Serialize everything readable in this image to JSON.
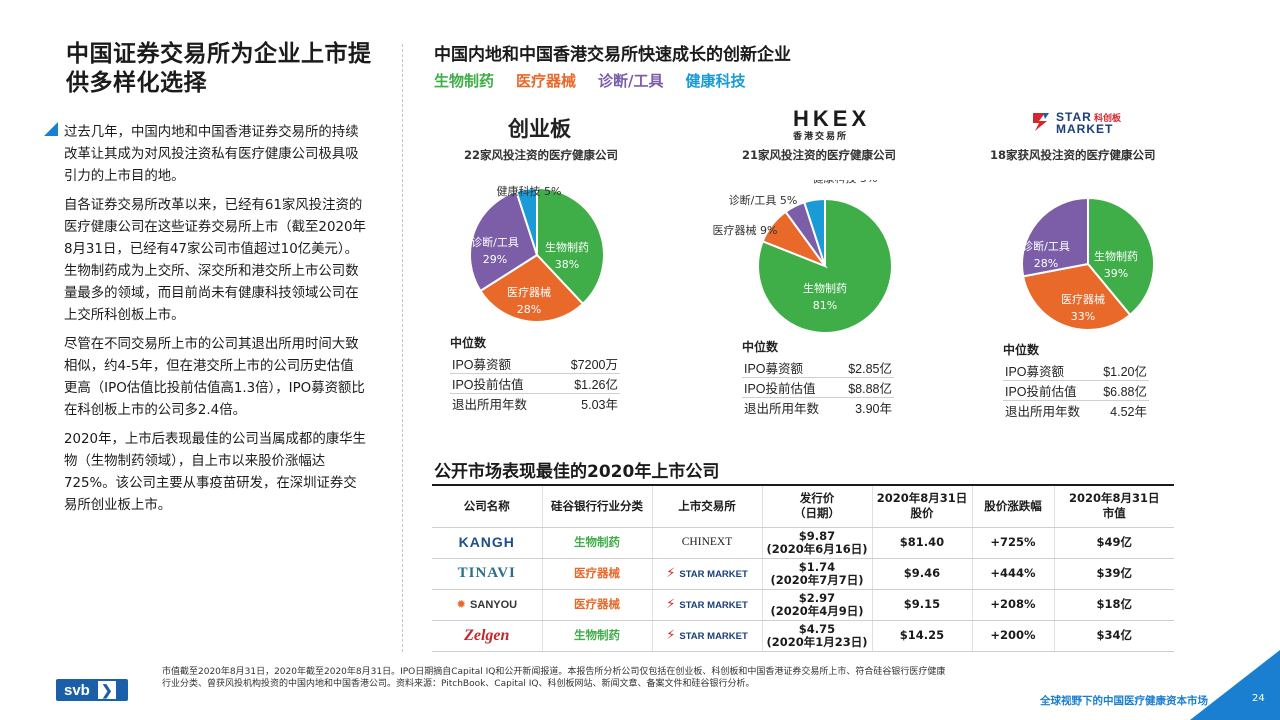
{
  "left": {
    "title": "中国证券交易所为企业上市提供多样化选择",
    "paragraphs": [
      "过去几年，中国内地和中国香港证券交易所的持续改革让其成为对风投注资私有医疗健康公司极具吸引力的上市目的地。",
      "自各证券交易所改革以来，已经有61家风投注资的医疗健康公司在这些证券交易所上市（截至2020年8月31日，已经有47家公司市值超过10亿美元）。生物制药成为上交所、深交所和港交所上市公司数量最多的领域，而目前尚未有健康科技领域公司在上交所科创板上市。",
      "尽管在不同交易所上市的公司其退出所用时间大致相似，约4-5年，但在港交所上市的公司历史估值更高（IPO估值比投前估值高1.3倍），IPO募资额比在科创板上市的公司多2.4倍。",
      "2020年，上市后表现最佳的公司当属成都的康华生物（生物制药领域），自上市以来股价涨幅达725%。该公司主要从事疫苗研发，在深圳证券交易所创业板上市。"
    ]
  },
  "main_title": "中国内地和中国香港交易所快速成长的创新企业",
  "legend": [
    {
      "label": "生物制药",
      "color": "#3fae49"
    },
    {
      "label": "医疗器械",
      "color": "#e8692a"
    },
    {
      "label": "诊断/工具",
      "color": "#7b5ea7"
    },
    {
      "label": "健康科技",
      "color": "#1a9bd8"
    }
  ],
  "exchanges": [
    {
      "name": "创业板",
      "subtitle": "22家风投注资的医疗健康公司",
      "median_header": "中位数",
      "medians": [
        [
          "IPO募资额",
          "$7200万"
        ],
        [
          "IPO投前估值",
          "$1.26亿"
        ],
        [
          "退出所用年数",
          "5.03年"
        ]
      ]
    },
    {
      "name": "HKEX",
      "name_sub": "香港交易所",
      "subtitle": "21家风投注资的医疗健康公司",
      "median_header": "中位数",
      "medians": [
        [
          "IPO募资额",
          "$2.85亿"
        ],
        [
          "IPO投前估值",
          "$8.88亿"
        ],
        [
          "退出所用年数",
          "3.90年"
        ]
      ]
    },
    {
      "name": "STAR MARKET",
      "name_cn": "科创板",
      "subtitle": "18家获风投注资的医疗健康公司",
      "median_header": "中位数",
      "medians": [
        [
          "IPO募资额",
          "$1.20亿"
        ],
        [
          "IPO投前估值",
          "$6.88亿"
        ],
        [
          "退出所用年数",
          "4.52年"
        ]
      ]
    }
  ],
  "chart_data": [
    {
      "type": "pie",
      "title": "创业板",
      "labels": [
        "生物制药",
        "医疗器械",
        "诊断/工具",
        "健康科技"
      ],
      "values": [
        38,
        28,
        29,
        5
      ],
      "colors": [
        "#3fae49",
        "#e8692a",
        "#7b5ea7",
        "#1a9bd8"
      ]
    },
    {
      "type": "pie",
      "title": "HKEX",
      "labels": [
        "生物制药",
        "医疗器械",
        "诊断/工具",
        "健康科技"
      ],
      "values": [
        81,
        9,
        5,
        5
      ],
      "colors": [
        "#3fae49",
        "#e8692a",
        "#7b5ea7",
        "#1a9bd8"
      ]
    },
    {
      "type": "pie",
      "title": "STAR MARKET",
      "labels": [
        "生物制药",
        "医疗器械",
        "诊断/工具"
      ],
      "values": [
        39,
        33,
        28
      ],
      "colors": [
        "#3fae49",
        "#e8692a",
        "#7b5ea7"
      ]
    }
  ],
  "table": {
    "title": "公开市场表现最佳的2020年上市公司",
    "headers": [
      "公司名称",
      "硅谷银行行业分类",
      "上市交易所",
      "发行价\n（日期）",
      "2020年8月31日\n股价",
      "股价涨跌幅",
      "2020年8月31日\n市值"
    ],
    "rows": [
      {
        "company": "KANGH",
        "category": "生物制药",
        "exchange": "CHINEXT",
        "price": "$9.87",
        "date": "(2020年6月16日)",
        "stock": "$81.40",
        "change": "+725%",
        "cap": "$49亿"
      },
      {
        "company": "TINAVI",
        "category": "医疗器械",
        "exchange": "STAR MARKET",
        "price": "$1.74",
        "date": "(2020年7月7日)",
        "stock": "$9.46",
        "change": "+444%",
        "cap": "$39亿"
      },
      {
        "company": "SANYOU",
        "category": "医疗器械",
        "exchange": "STAR MARKET",
        "price": "$2.97",
        "date": "(2020年4月9日)",
        "stock": "$9.15",
        "change": "+208%",
        "cap": "$18亿"
      },
      {
        "company": "Zelgen",
        "category": "生物制药",
        "exchange": "STAR MARKET",
        "price": "$4.75",
        "date": "(2020年1月23日)",
        "stock": "$14.25",
        "change": "+200%",
        "cap": "$34亿"
      }
    ]
  },
  "footnote": "市值截至2020年8月31日，2020年截至2020年8月31日。IPO日期摘自Capital IQ和公开新闻报道。本报告所分析公司仅包括在创业板、科创板和中国香港证券交易所上市、符合硅谷银行医疗健康行业分类、曾获风投机构投资的中国内地和中国香港公司。资料来源：PitchBook、Capital IQ、科创板网站、新闻文章、备案文件和硅谷银行分析。",
  "footer": {
    "brand": "svb",
    "report": "全球视野下的中国医疗健康资本市场",
    "page": "24"
  }
}
